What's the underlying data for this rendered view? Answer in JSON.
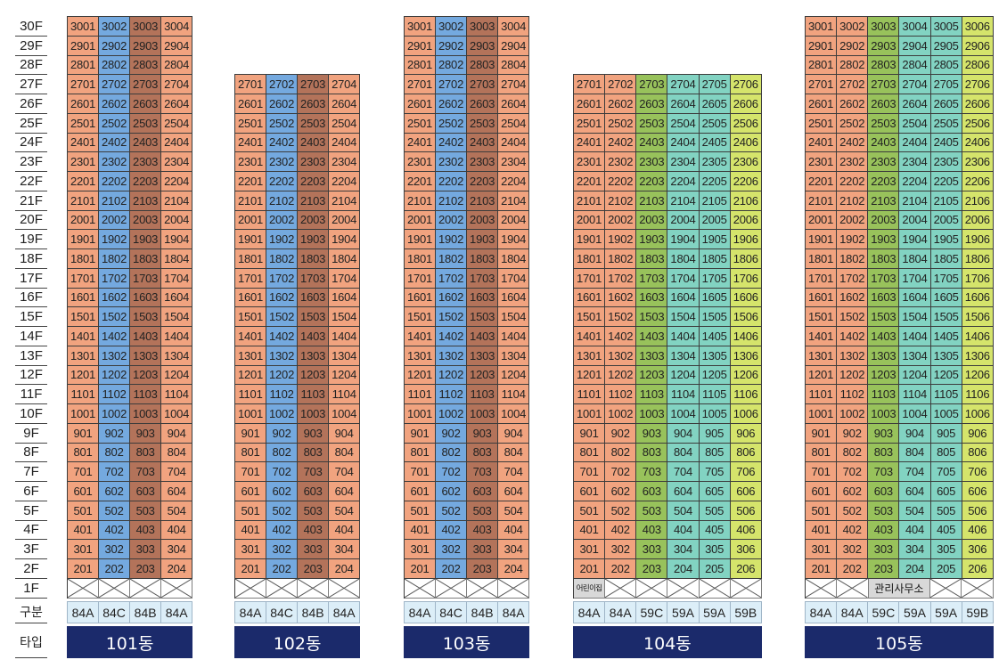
{
  "floor_labels": [
    "30F",
    "29F",
    "28F",
    "27F",
    "26F",
    "25F",
    "24F",
    "23F",
    "22F",
    "21F",
    "20F",
    "19F",
    "18F",
    "17F",
    "16F",
    "15F",
    "14F",
    "13F",
    "12F",
    "11F",
    "10F",
    "9F",
    "8F",
    "7F",
    "6F",
    "5F",
    "4F",
    "3F",
    "2F",
    "1F"
  ],
  "row_labels": {
    "type": "구분",
    "building": "타입"
  },
  "colors": {
    "unit_types": {
      "84A": "#F1A37F",
      "84C": "#74A9DF",
      "84B": "#B3735A",
      "59C": "#98C25B",
      "59A": "#82D3C2",
      "59B": "#D5E46B"
    },
    "type_row": "#DCEEF8",
    "title_bar": "#1B2A6B",
    "facility": "#D8D8D8"
  },
  "buildings": [
    {
      "name": "101동",
      "types": [
        "84A",
        "84C",
        "84B",
        "84A"
      ],
      "floors": [
        [
          "3001",
          "3002",
          "3003",
          "3004"
        ],
        [
          "2901",
          "2902",
          "2903",
          "2904"
        ],
        [
          "2801",
          "2802",
          "2803",
          "2804"
        ],
        [
          "2701",
          "2702",
          "2703",
          "2704"
        ],
        [
          "2601",
          "2602",
          "2603",
          "2604"
        ],
        [
          "2501",
          "2502",
          "2503",
          "2504"
        ],
        [
          "2401",
          "2402",
          "2403",
          "2404"
        ],
        [
          "2301",
          "2302",
          "2303",
          "2304"
        ],
        [
          "2201",
          "2202",
          "2203",
          "2204"
        ],
        [
          "2101",
          "2102",
          "2103",
          "2104"
        ],
        [
          "2001",
          "2002",
          "2003",
          "2004"
        ],
        [
          "1901",
          "1902",
          "1903",
          "1904"
        ],
        [
          "1801",
          "1802",
          "1803",
          "1804"
        ],
        [
          "1701",
          "1702",
          "1703",
          "1704"
        ],
        [
          "1601",
          "1602",
          "1603",
          "1604"
        ],
        [
          "1501",
          "1502",
          "1503",
          "1504"
        ],
        [
          "1401",
          "1402",
          "1403",
          "1404"
        ],
        [
          "1301",
          "1302",
          "1303",
          "1304"
        ],
        [
          "1201",
          "1202",
          "1203",
          "1204"
        ],
        [
          "1101",
          "1102",
          "1103",
          "1104"
        ],
        [
          "1001",
          "1002",
          "1003",
          "1004"
        ],
        [
          "901",
          "902",
          "903",
          "904"
        ],
        [
          "801",
          "802",
          "803",
          "804"
        ],
        [
          "701",
          "702",
          "703",
          "704"
        ],
        [
          "601",
          "602",
          "603",
          "604"
        ],
        [
          "501",
          "502",
          "503",
          "504"
        ],
        [
          "401",
          "402",
          "403",
          "404"
        ],
        [
          "301",
          "302",
          "303",
          "304"
        ],
        [
          "201",
          "202",
          "203",
          "204"
        ]
      ],
      "ground": [
        {
          "icon": "cross-icon"
        },
        {
          "icon": "cross-icon"
        },
        {
          "icon": "cross-icon"
        },
        {
          "icon": "cross-icon"
        }
      ]
    },
    {
      "name": "102동",
      "types": [
        "84A",
        "84C",
        "84B",
        "84A"
      ],
      "floors": [
        [
          "2701",
          "2702",
          "2703",
          "2704"
        ],
        [
          "2601",
          "2602",
          "2603",
          "2604"
        ],
        [
          "2501",
          "2502",
          "2503",
          "2504"
        ],
        [
          "2401",
          "2402",
          "2403",
          "2404"
        ],
        [
          "2301",
          "2302",
          "2303",
          "2304"
        ],
        [
          "2201",
          "2202",
          "2203",
          "2204"
        ],
        [
          "2101",
          "2102",
          "2103",
          "2104"
        ],
        [
          "2001",
          "2002",
          "2003",
          "2004"
        ],
        [
          "1901",
          "1902",
          "1903",
          "1904"
        ],
        [
          "1801",
          "1802",
          "1803",
          "1804"
        ],
        [
          "1701",
          "1702",
          "1703",
          "1704"
        ],
        [
          "1601",
          "1602",
          "1603",
          "1604"
        ],
        [
          "1501",
          "1502",
          "1503",
          "1504"
        ],
        [
          "1401",
          "1402",
          "1403",
          "1404"
        ],
        [
          "1301",
          "1302",
          "1303",
          "1304"
        ],
        [
          "1201",
          "1202",
          "1203",
          "1204"
        ],
        [
          "1101",
          "1102",
          "1103",
          "1104"
        ],
        [
          "1001",
          "1002",
          "1003",
          "1004"
        ],
        [
          "901",
          "902",
          "903",
          "904"
        ],
        [
          "801",
          "802",
          "803",
          "804"
        ],
        [
          "701",
          "702",
          "703",
          "704"
        ],
        [
          "601",
          "602",
          "603",
          "604"
        ],
        [
          "501",
          "502",
          "503",
          "504"
        ],
        [
          "401",
          "402",
          "403",
          "404"
        ],
        [
          "301",
          "302",
          "303",
          "304"
        ],
        [
          "201",
          "202",
          "203",
          "204"
        ]
      ],
      "ground": [
        {
          "icon": "cross-icon"
        },
        {
          "icon": "cross-icon"
        },
        {
          "icon": "cross-icon"
        },
        {
          "icon": "cross-icon"
        }
      ]
    },
    {
      "name": "103동",
      "types": [
        "84A",
        "84C",
        "84B",
        "84A"
      ],
      "floors": [
        [
          "3001",
          "3002",
          "3003",
          "3004"
        ],
        [
          "2901",
          "2902",
          "2903",
          "2904"
        ],
        [
          "2801",
          "2802",
          "2803",
          "2804"
        ],
        [
          "2701",
          "2702",
          "2703",
          "2704"
        ],
        [
          "2601",
          "2602",
          "2603",
          "2604"
        ],
        [
          "2501",
          "2502",
          "2503",
          "2504"
        ],
        [
          "2401",
          "2402",
          "2403",
          "2404"
        ],
        [
          "2301",
          "2302",
          "2303",
          "2304"
        ],
        [
          "2201",
          "2202",
          "2203",
          "2204"
        ],
        [
          "2101",
          "2102",
          "2103",
          "2104"
        ],
        [
          "2001",
          "2002",
          "2003",
          "2004"
        ],
        [
          "1901",
          "1902",
          "1903",
          "1904"
        ],
        [
          "1801",
          "1802",
          "1803",
          "1804"
        ],
        [
          "1701",
          "1702",
          "1703",
          "1704"
        ],
        [
          "1601",
          "1602",
          "1603",
          "1604"
        ],
        [
          "1501",
          "1502",
          "1503",
          "1504"
        ],
        [
          "1401",
          "1402",
          "1403",
          "1404"
        ],
        [
          "1301",
          "1302",
          "1303",
          "1304"
        ],
        [
          "1201",
          "1202",
          "1203",
          "1204"
        ],
        [
          "1101",
          "1102",
          "1103",
          "1104"
        ],
        [
          "1001",
          "1002",
          "1003",
          "1004"
        ],
        [
          "901",
          "902",
          "903",
          "904"
        ],
        [
          "801",
          "802",
          "803",
          "804"
        ],
        [
          "701",
          "702",
          "703",
          "704"
        ],
        [
          "601",
          "602",
          "603",
          "604"
        ],
        [
          "501",
          "502",
          "503",
          "504"
        ],
        [
          "401",
          "402",
          "403",
          "404"
        ],
        [
          "301",
          "302",
          "303",
          "304"
        ],
        [
          "201",
          "202",
          "203",
          "204"
        ]
      ],
      "ground": [
        {
          "icon": "cross-icon"
        },
        {
          "icon": "cross-icon"
        },
        {
          "icon": "cross-icon"
        },
        {
          "icon": "cross-icon"
        }
      ]
    },
    {
      "name": "104동",
      "types": [
        "84A",
        "84A",
        "59C",
        "59A",
        "59A",
        "59B"
      ],
      "floors": [
        [
          "2701",
          "2702",
          "2703",
          "2704",
          "2705",
          "2706"
        ],
        [
          "2601",
          "2602",
          "2603",
          "2604",
          "2605",
          "2606"
        ],
        [
          "2501",
          "2502",
          "2503",
          "2504",
          "2505",
          "2506"
        ],
        [
          "2401",
          "2402",
          "2403",
          "2404",
          "2405",
          "2406"
        ],
        [
          "2301",
          "2302",
          "2303",
          "2304",
          "2305",
          "2306"
        ],
        [
          "2201",
          "2202",
          "2203",
          "2204",
          "2205",
          "2206"
        ],
        [
          "2101",
          "2102",
          "2103",
          "2104",
          "2105",
          "2106"
        ],
        [
          "2001",
          "2002",
          "2003",
          "2004",
          "2005",
          "2006"
        ],
        [
          "1901",
          "1902",
          "1903",
          "1904",
          "1905",
          "1906"
        ],
        [
          "1801",
          "1802",
          "1803",
          "1804",
          "1805",
          "1806"
        ],
        [
          "1701",
          "1702",
          "1703",
          "1704",
          "1705",
          "1706"
        ],
        [
          "1601",
          "1602",
          "1603",
          "1604",
          "1605",
          "1606"
        ],
        [
          "1501",
          "1502",
          "1503",
          "1504",
          "1505",
          "1506"
        ],
        [
          "1401",
          "1402",
          "1403",
          "1404",
          "1405",
          "1406"
        ],
        [
          "1301",
          "1302",
          "1303",
          "1304",
          "1305",
          "1306"
        ],
        [
          "1201",
          "1202",
          "1203",
          "1204",
          "1205",
          "1206"
        ],
        [
          "1101",
          "1102",
          "1103",
          "1104",
          "1105",
          "1106"
        ],
        [
          "1001",
          "1002",
          "1003",
          "1004",
          "1005",
          "1006"
        ],
        [
          "901",
          "902",
          "903",
          "904",
          "905",
          "906"
        ],
        [
          "801",
          "802",
          "803",
          "804",
          "805",
          "806"
        ],
        [
          "701",
          "702",
          "703",
          "704",
          "705",
          "706"
        ],
        [
          "601",
          "602",
          "603",
          "604",
          "605",
          "606"
        ],
        [
          "501",
          "502",
          "503",
          "504",
          "505",
          "506"
        ],
        [
          "401",
          "402",
          "403",
          "404",
          "405",
          "406"
        ],
        [
          "301",
          "302",
          "303",
          "304",
          "305",
          "306"
        ],
        [
          "201",
          "202",
          "203",
          "204",
          "205",
          "206"
        ]
      ],
      "ground": [
        {
          "label": "어린이집",
          "lines": 1
        },
        {
          "icon": "cross-icon"
        },
        {
          "icon": "cross-icon"
        },
        {
          "icon": "cross-icon"
        },
        {
          "icon": "cross-icon"
        },
        {
          "icon": "cross-icon"
        }
      ]
    },
    {
      "name": "105동",
      "types": [
        "84A",
        "84A",
        "59C",
        "59A",
        "59A",
        "59B"
      ],
      "floors": [
        [
          "3001",
          "3002",
          "3003",
          "3004",
          "3005",
          "3006"
        ],
        [
          "2901",
          "2902",
          "2903",
          "2904",
          "2905",
          "2906"
        ],
        [
          "2801",
          "2802",
          "2803",
          "2804",
          "2805",
          "2806"
        ],
        [
          "2701",
          "2702",
          "2703",
          "2704",
          "2705",
          "2706"
        ],
        [
          "2601",
          "2602",
          "2603",
          "2604",
          "2605",
          "2606"
        ],
        [
          "2501",
          "2502",
          "2503",
          "2504",
          "2505",
          "2506"
        ],
        [
          "2401",
          "2402",
          "2403",
          "2404",
          "2405",
          "2406"
        ],
        [
          "2301",
          "2302",
          "2303",
          "2304",
          "2305",
          "2306"
        ],
        [
          "2201",
          "2202",
          "2203",
          "2204",
          "2205",
          "2206"
        ],
        [
          "2101",
          "2102",
          "2103",
          "2104",
          "2105",
          "2106"
        ],
        [
          "2001",
          "2002",
          "2003",
          "2004",
          "2005",
          "2006"
        ],
        [
          "1901",
          "1902",
          "1903",
          "1904",
          "1905",
          "1906"
        ],
        [
          "1801",
          "1802",
          "1803",
          "1804",
          "1805",
          "1806"
        ],
        [
          "1701",
          "1702",
          "1703",
          "1704",
          "1705",
          "1706"
        ],
        [
          "1601",
          "1602",
          "1603",
          "1604",
          "1605",
          "1606"
        ],
        [
          "1501",
          "1502",
          "1503",
          "1504",
          "1505",
          "1506"
        ],
        [
          "1401",
          "1402",
          "1403",
          "1404",
          "1405",
          "1406"
        ],
        [
          "1301",
          "1302",
          "1303",
          "1304",
          "1305",
          "1306"
        ],
        [
          "1201",
          "1202",
          "1203",
          "1204",
          "1205",
          "1206"
        ],
        [
          "1101",
          "1102",
          "1103",
          "1104",
          "1105",
          "1106"
        ],
        [
          "1001",
          "1002",
          "1003",
          "1004",
          "1005",
          "1006"
        ],
        [
          "901",
          "902",
          "903",
          "904",
          "905",
          "906"
        ],
        [
          "801",
          "802",
          "803",
          "804",
          "805",
          "806"
        ],
        [
          "701",
          "702",
          "703",
          "704",
          "705",
          "706"
        ],
        [
          "601",
          "602",
          "603",
          "604",
          "605",
          "606"
        ],
        [
          "501",
          "502",
          "503",
          "504",
          "505",
          "506"
        ],
        [
          "401",
          "402",
          "403",
          "404",
          "405",
          "406"
        ],
        [
          "301",
          "302",
          "303",
          "304",
          "305",
          "306"
        ],
        [
          "201",
          "202",
          "203",
          "204",
          "205",
          "206"
        ]
      ],
      "ground": [
        {
          "icon": "cross-icon"
        },
        {
          "icon": "cross-icon"
        },
        {
          "label": "관리사무소",
          "lines": 2
        },
        {
          "icon": "cross-icon"
        },
        {
          "icon": "cross-icon"
        }
      ]
    }
  ]
}
